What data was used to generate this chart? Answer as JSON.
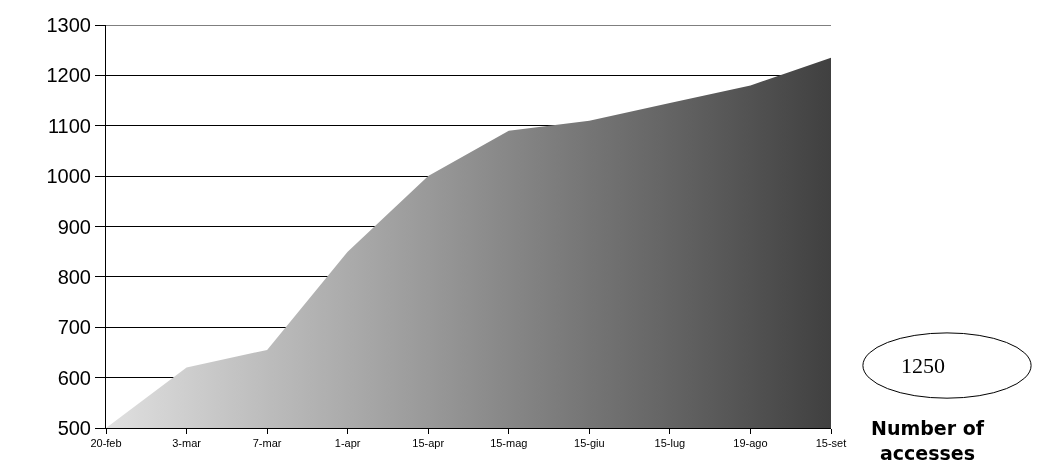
{
  "chart_data": {
    "type": "area",
    "categories": [
      "20-feb",
      "3-mar",
      "7-mar",
      "1-apr",
      "15-apr",
      "15-mag",
      "15-giu",
      "15-lug",
      "19-ago",
      "15-set"
    ],
    "series": [
      {
        "values": [
          500,
          620,
          655,
          850,
          1000,
          1090,
          1110,
          1145,
          1180,
          1235
        ],
        "colors": [
          "#e0e0e0",
          "#cecece",
          "#bcbcbc",
          "#ababab",
          "#999999",
          "#878787",
          "#757575",
          "#646464",
          "#525252",
          "#404040"
        ]
      }
    ],
    "ylim": [
      500,
      1300
    ],
    "yticks": [
      500,
      600,
      700,
      800,
      900,
      1000,
      1100,
      1200,
      1300
    ],
    "grid": "y",
    "annotations": [
      "1250",
      "Number of accesses"
    ]
  }
}
